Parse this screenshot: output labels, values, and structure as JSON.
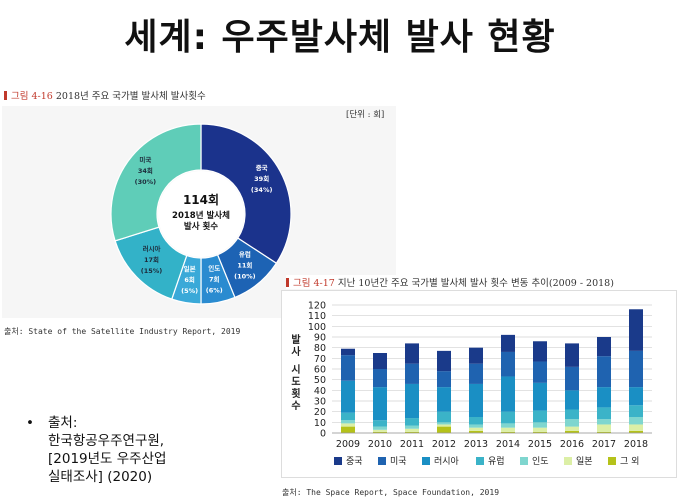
{
  "slide": {
    "title": "세계: 우주발사체 발사 현황",
    "note_bullet": "•",
    "note_lines": [
      "출처:",
      "한국항공우주연구원,",
      "[2019년도 우주산업",
      "실태조사] (2020)"
    ]
  },
  "figure1": {
    "caption_prefix": "그림 4-16",
    "caption_text": "2018년 주요 국가별 발사체 발사횟수",
    "unit": "[단위 : 회]",
    "source": "출처: State of the Satellite Industry Report, 2019"
  },
  "figure2": {
    "caption_prefix": "그림 4-17",
    "caption_text": "지난 10년간 주요 국가별 발사체 발사 횟수 변동 추이(2009 - 2018)",
    "source": "출처: The Space Report, Space Foundation, 2019"
  },
  "colors": {
    "china": "#1a3a8a",
    "usa": "#1f63b0",
    "russia": "#1a8fc4",
    "europe": "#3bb3c8",
    "india": "#7fd6cf",
    "japan": "#dcefa6",
    "other": "#b5c21a",
    "pie_china": "#1b338c",
    "pie_europe": "#1d63b4",
    "pie_india": "#2a8bd0",
    "pie_japan": "#3aa9d8",
    "pie_russia": "#33b2c8",
    "pie_usa": "#5fcdb8"
  },
  "chart_data": [
    {
      "type": "pie",
      "center_label": [
        "114회",
        "2018년 발사체",
        "발사 횟수"
      ],
      "slices": [
        {
          "name": "중국",
          "value": 39,
          "count_label": "39회",
          "pct_label": "(34%)",
          "color_key": "pie_china"
        },
        {
          "name": "유럽",
          "value": 11,
          "count_label": "11회",
          "pct_label": "(10%)",
          "color_key": "pie_europe"
        },
        {
          "name": "인도",
          "value": 7,
          "count_label": "7회",
          "pct_label": "(6%)",
          "color_key": "pie_india"
        },
        {
          "name": "일본",
          "value": 6,
          "count_label": "6회",
          "pct_label": "(5%)",
          "color_key": "pie_japan"
        },
        {
          "name": "러시아",
          "value": 17,
          "count_label": "17회",
          "pct_label": "(15%)",
          "color_key": "pie_russia"
        },
        {
          "name": "미국",
          "value": 34,
          "count_label": "34회",
          "pct_label": "(30%)",
          "color_key": "pie_usa"
        }
      ]
    },
    {
      "type": "bar",
      "stacked": true,
      "ylabel": "발사 시도횟수",
      "ylim": [
        0,
        120
      ],
      "yticks": [
        0,
        10,
        20,
        30,
        40,
        50,
        60,
        70,
        80,
        90,
        100,
        110,
        120
      ],
      "grid": true,
      "legend_position": "bottom",
      "categories": [
        "2009",
        "2010",
        "2011",
        "2012",
        "2013",
        "2014",
        "2015",
        "2016",
        "2017",
        "2018"
      ],
      "series": [
        {
          "name": "그 외",
          "color_key": "other",
          "values": [
            6,
            1,
            1,
            6,
            2,
            1,
            1,
            2,
            1,
            2
          ]
        },
        {
          "name": "일본",
          "color_key": "japan",
          "values": [
            3,
            2,
            3,
            2,
            3,
            4,
            4,
            4,
            7,
            6
          ]
        },
        {
          "name": "인도",
          "color_key": "india",
          "values": [
            3,
            3,
            3,
            2,
            3,
            4,
            5,
            7,
            5,
            7
          ]
        },
        {
          "name": "유럽",
          "color_key": "europe",
          "values": [
            7,
            6,
            7,
            10,
            7,
            11,
            11,
            9,
            11,
            11
          ]
        },
        {
          "name": "러시아",
          "color_key": "russia",
          "values": [
            30,
            31,
            32,
            23,
            31,
            33,
            26,
            18,
            19,
            17
          ]
        },
        {
          "name": "미국",
          "color_key": "usa",
          "values": [
            24,
            17,
            19,
            15,
            19,
            23,
            20,
            22,
            29,
            34
          ]
        },
        {
          "name": "중국",
          "color_key": "china",
          "values": [
            6,
            15,
            19,
            19,
            15,
            16,
            19,
            22,
            18,
            39
          ]
        }
      ],
      "legend_order": [
        "중국",
        "미국",
        "러시아",
        "유럽",
        "인도",
        "일본",
        "그 외"
      ]
    }
  ]
}
